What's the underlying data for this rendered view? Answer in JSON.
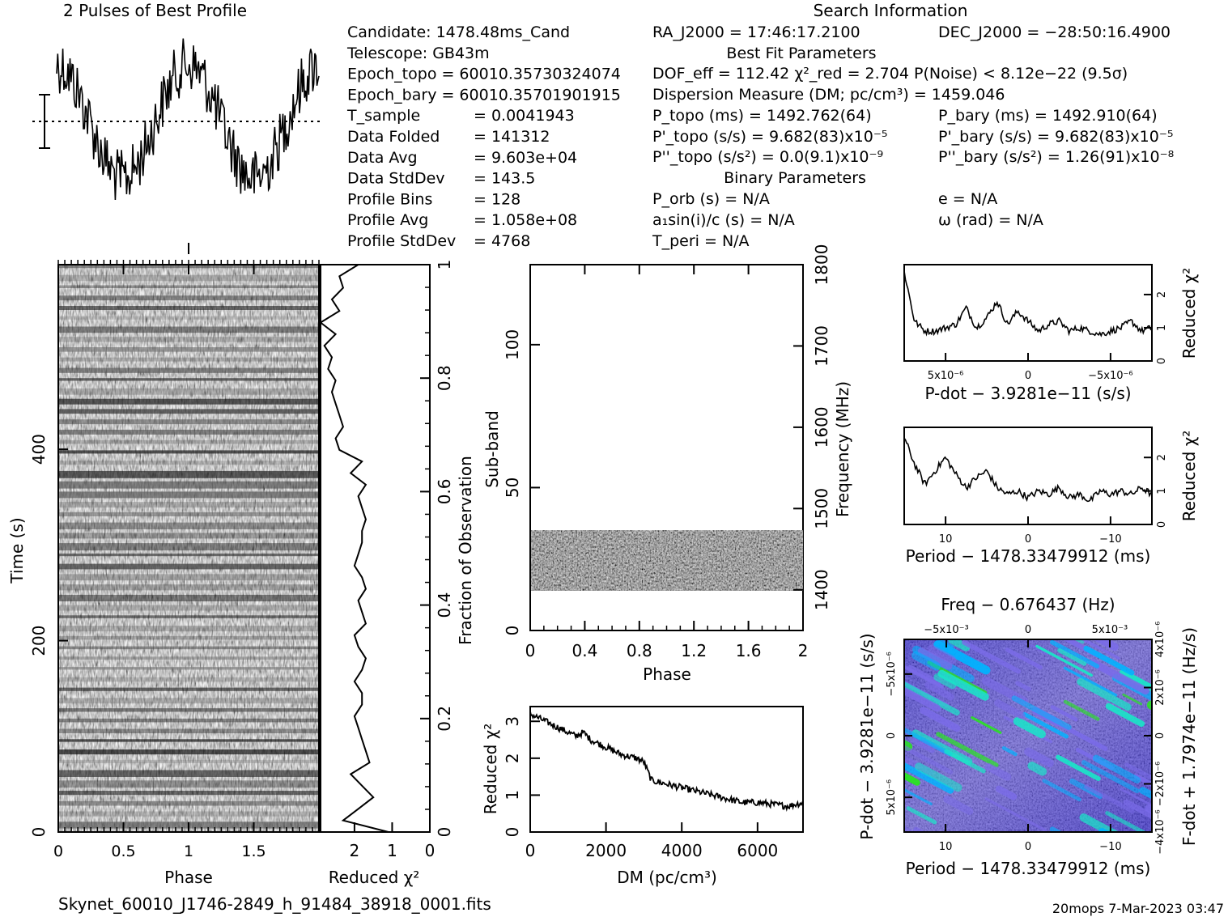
{
  "footer": {
    "filename": "Skynet_60010_J1746-2849_h_91484_38918_0001.fits",
    "stamp": "20mops  7-Mar-2023 03:47"
  },
  "info": {
    "left": [
      [
        "Candidate:  1478.48ms_Cand",
        ""
      ],
      [
        "Telescope:  GB43m",
        ""
      ],
      [
        "Epoch_topo = 60010.35730324074",
        ""
      ],
      [
        "Epoch_bary = 60010.35701901915",
        ""
      ],
      [
        "T_sample",
        "=  0.0041943"
      ],
      [
        "Data Folded",
        "=  141312"
      ],
      [
        "Data Avg",
        "=  9.603e+04"
      ],
      [
        "Data StdDev",
        "=  143.5"
      ],
      [
        "Profile Bins",
        "=  128"
      ],
      [
        "Profile Avg",
        "=  1.058e+08"
      ],
      [
        "Profile StdDev",
        "=  4768"
      ]
    ],
    "search_title": "Search Information",
    "ra": "RA_J2000 = 17:46:17.2100",
    "dec": "DEC_J2000 = −28:50:16.4900",
    "best_fit_title": "Best Fit Parameters",
    "dof": "DOF_eff = 112.42  χ²_red = 2.704  P(Noise) < 8.12e−22  (9.5σ)",
    "dm": "Dispersion Measure (DM; pc/cm³) = 1459.046",
    "p_topo": "P_topo (ms) =  1492.762(64)",
    "p_bary": "P_bary (ms) =  1492.910(64)",
    "pd_topo": "P'_topo (s/s) =  9.682(83)x10⁻⁵",
    "pd_bary": "P'_bary (s/s) =  9.682(83)x10⁻⁵",
    "pdd_topo": "P''_topo (s/s²) = 0.0(9.1)x10⁻⁹",
    "pdd_bary": "P''_bary (s/s²) =  1.26(91)x10⁻⁸",
    "binary_title": "Binary Parameters",
    "porb": "P_orb (s) = N/A",
    "asini": "a₁sin(i)/c (s) = N/A",
    "tperi": "T_peri = N/A",
    "ecc": "e = N/A",
    "omega": "ω (rad) = N/A"
  },
  "chart_data": [
    {
      "type": "line",
      "title": "2 Pulses of Best Profile",
      "x": [
        0,
        2
      ],
      "shape": "two periods of a noisy broad pulse"
    },
    {
      "type": "heatmap",
      "name": "time-phase",
      "xlabel": "Phase",
      "ylabel": "Time (s)",
      "xticks": [
        "0",
        "0.5",
        "1",
        "1.5"
      ],
      "yticks": [
        "0",
        "200",
        "400"
      ],
      "xlim": [
        0,
        2
      ],
      "ylim": [
        0,
        593
      ],
      "right_ylabel": "Fraction of Observation",
      "right_yticks": [
        "0",
        "0.2",
        "0.4",
        "0.6",
        "0.8",
        "1"
      ]
    },
    {
      "type": "line",
      "name": "time-chi2",
      "xlabel": "Reduced χ²",
      "xticks": [
        "2",
        "1",
        "0"
      ],
      "values": [
        1.1,
        2.3,
        1.9,
        1.5,
        1.8,
        2.1,
        1.6,
        1.7,
        1.8,
        1.9,
        2.0,
        1.8,
        1.8,
        2.0,
        1.8,
        1.7,
        1.9,
        2.0,
        1.7,
        1.8,
        1.9,
        1.7,
        1.8,
        2.0,
        1.9,
        1.8,
        1.8,
        1.7,
        1.8,
        1.9,
        1.7,
        2.1,
        1.8,
        2.4,
        2.5,
        2.3,
        2.4,
        2.5,
        2.6,
        2.5,
        2.7,
        2.6,
        2.8,
        2.5,
        2.9,
        2.4,
        2.6,
        2.3,
        2.4,
        1.9
      ]
    },
    {
      "type": "heatmap",
      "name": "subband-phase",
      "xlabel": "Phase",
      "ylabel": "Sub-band",
      "xticks": [
        "0",
        "0.4",
        "0.8",
        "1.2",
        "1.6",
        "2"
      ],
      "yticks": [
        "0",
        "50",
        "100"
      ],
      "right_ylabel": "Frequency (MHz)",
      "right_yticks": [
        "1400",
        "1500",
        "1600",
        "1700",
        "1800"
      ],
      "xlim": [
        0,
        2
      ],
      "ylim": [
        0,
        128
      ],
      "active_subbands": [
        14,
        35
      ]
    },
    {
      "type": "line",
      "name": "dm-chi2",
      "xlabel": "DM (pc/cm³)",
      "ylabel": "Reduced χ²",
      "xticks": [
        "0",
        "2000",
        "4000",
        "6000"
      ],
      "yticks": [
        "0",
        "1",
        "2",
        "3"
      ],
      "xlim": [
        0,
        7200
      ],
      "ylim": [
        0,
        3.4
      ],
      "x": [
        0,
        400,
        800,
        1200,
        1400,
        1600,
        2000,
        2400,
        2800,
        3000,
        3200,
        3600,
        4000,
        4400,
        4800,
        5200,
        5600,
        6000,
        6400,
        6800,
        7200
      ],
      "values": [
        3.2,
        3.0,
        2.8,
        2.6,
        2.7,
        2.5,
        2.3,
        2.1,
        2.0,
        1.9,
        1.4,
        1.3,
        1.2,
        1.1,
        1.0,
        0.9,
        0.8,
        0.8,
        0.75,
        0.7,
        0.8
      ]
    },
    {
      "type": "line",
      "name": "pdot-chi2",
      "xlabel": "P-dot − 3.9281e−11 (s/s)",
      "ylabel": "Reduced χ²",
      "xticks": [
        "5x10⁻⁶",
        "0",
        "−5x10⁻⁶"
      ],
      "yticks": [
        "0",
        "1",
        "2"
      ],
      "xlim": [
        1e-05,
        -1e-05
      ],
      "ylim": [
        0,
        2.9
      ],
      "values": [
        2.7,
        1.2,
        0.9,
        0.9,
        1.0,
        1.1,
        1.6,
        1.0,
        1.3,
        1.8,
        1.1,
        1.5,
        1.2,
        0.9,
        1.1,
        1.2,
        0.9,
        1.0,
        0.9,
        0.8,
        0.9,
        1.0,
        1.2,
        0.9,
        1.0
      ]
    },
    {
      "type": "line",
      "name": "period-chi2",
      "xlabel": "Period − 1478.33479912 (ms)",
      "ylabel": "Reduced χ²",
      "xticks": [
        "10",
        "0",
        "−10"
      ],
      "yticks": [
        "0",
        "1",
        "2"
      ],
      "xlim": [
        15,
        -15
      ],
      "ylim": [
        0,
        2.9
      ],
      "values": [
        2.6,
        1.8,
        1.2,
        1.6,
        2.0,
        1.5,
        1.1,
        1.4,
        1.6,
        1.1,
        0.9,
        1.0,
        0.8,
        1.0,
        0.9,
        1.1,
        0.8,
        0.9,
        0.7,
        1.0,
        0.9,
        1.0,
        0.9,
        1.1,
        0.9
      ]
    },
    {
      "type": "heatmap",
      "name": "period-pdot",
      "top_label": "Freq − 0.676437 (Hz)",
      "top_ticks": [
        "−5x10⁻³",
        "0",
        "5x10⁻³"
      ],
      "xlabel": "Period − 1478.33479912 (ms)",
      "xticks": [
        "10",
        "0",
        "−10"
      ],
      "ylabel": "P-dot − 3.9281e−11 (s/s)",
      "yticks": [
        "5x10⁻⁶",
        "0",
        "−5x10⁻⁶"
      ],
      "right_ylabel": "F-dot + 1.7974e−11 (Hz/s)",
      "right_yticks": [
        "−4x10⁻⁶",
        "−2x10⁻⁶",
        "0",
        "2x10⁻⁶",
        "4x10⁻⁶"
      ],
      "colors": [
        "#2b1fd9",
        "#7a6be8",
        "#00b4ff",
        "#19e6c8",
        "#27e81b"
      ]
    }
  ]
}
